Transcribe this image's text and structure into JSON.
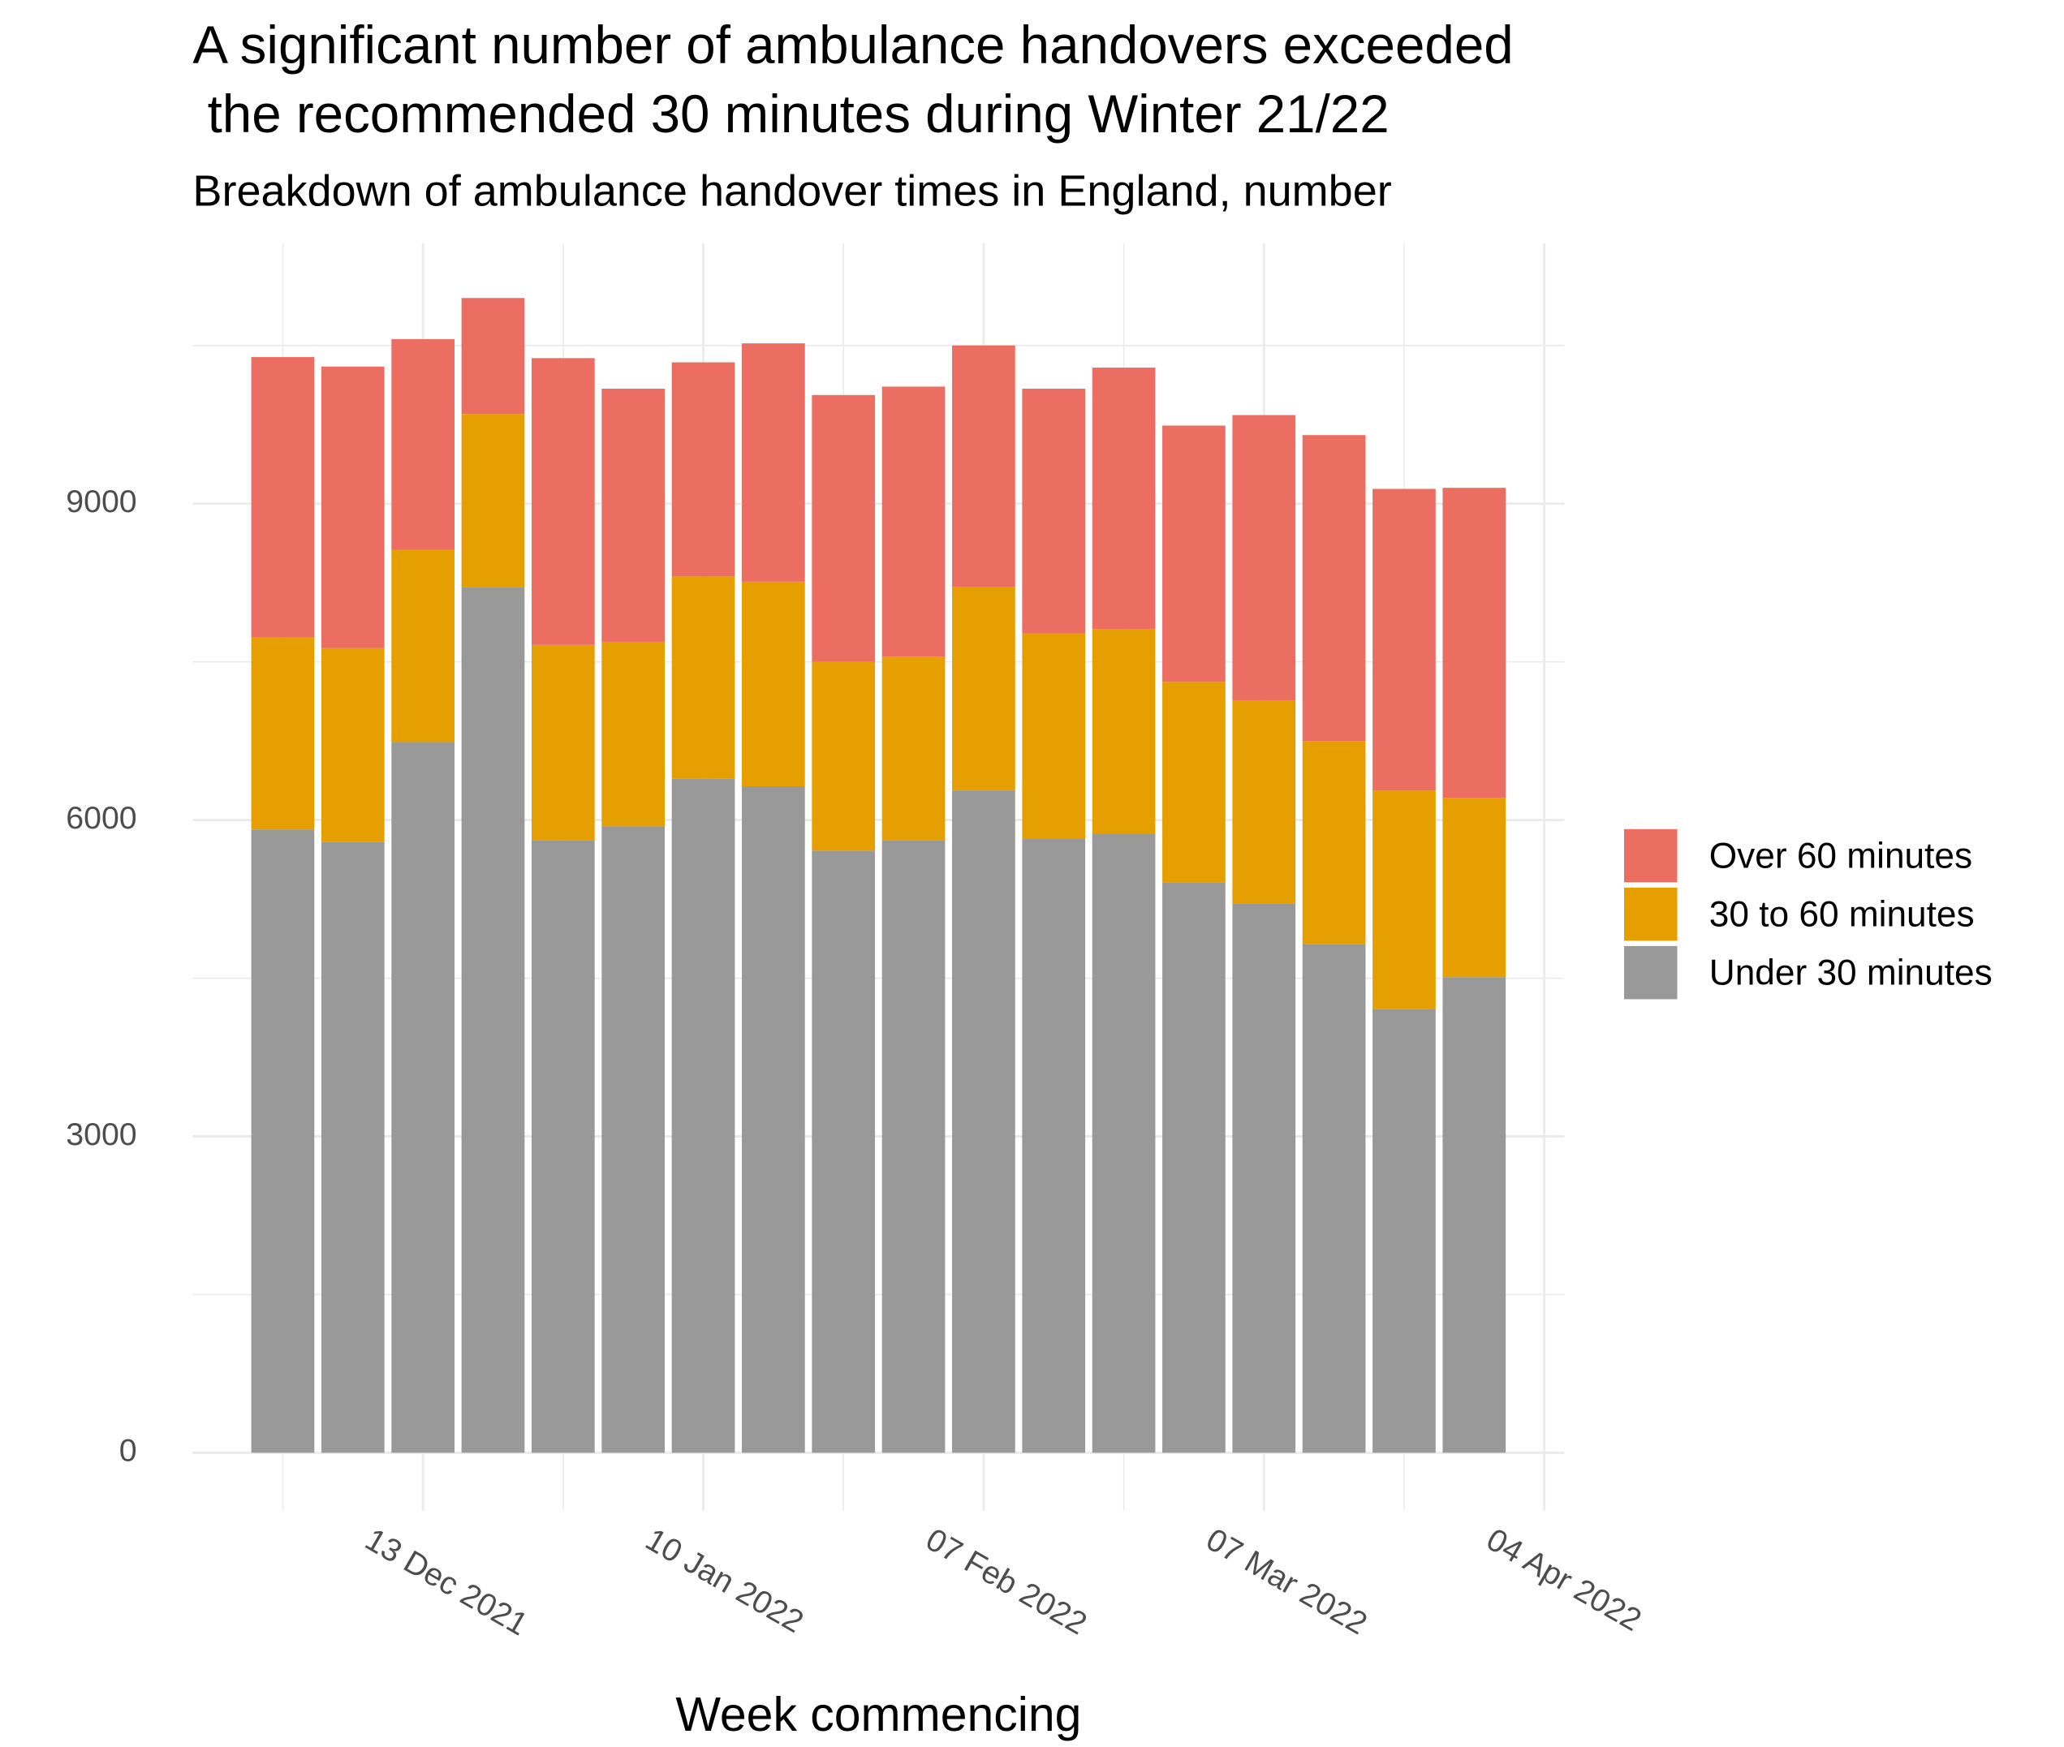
{
  "chart_data": {
    "type": "stacked-bar",
    "title": [
      "A significant number of ambulance handovers exceeded",
      " the recommended 30 minutes during Winter 21/22"
    ],
    "subtitle": "Breakdown of ambulance handover times in England, number",
    "x_label": "Week commencing",
    "x": [
      "2021-11-29",
      "2021-12-06",
      "2021-12-13",
      "2021-12-20",
      "2021-12-27",
      "2022-01-03",
      "2022-01-10",
      "2022-01-17",
      "2022-01-24",
      "2022-01-31",
      "2022-02-07",
      "2022-02-14",
      "2022-02-21",
      "2022-02-28",
      "2022-03-07",
      "2022-03-14",
      "2022-03-21",
      "2022-03-28"
    ],
    "series": [
      {
        "name": "Under 30 minutes",
        "color": "#999999",
        "values": [
          5910,
          5790,
          6740,
          8210,
          5810,
          5940,
          6390,
          6320,
          5710,
          5810,
          6280,
          5820,
          5870,
          5410,
          5210,
          4820,
          4210,
          4510
        ]
      },
      {
        "name": "30 to 60 minutes",
        "color": "#E69F00",
        "values": [
          1820,
          1840,
          1820,
          1640,
          1850,
          1750,
          1920,
          1940,
          1790,
          1740,
          1930,
          1950,
          1940,
          1900,
          1920,
          1930,
          2070,
          1700
        ]
      },
      {
        "name": "Over 60 minutes",
        "color": "#EC6E62",
        "values": [
          2660,
          2670,
          2000,
          1100,
          2720,
          2400,
          2030,
          2260,
          2530,
          2560,
          2290,
          2320,
          2480,
          2430,
          2710,
          2900,
          2860,
          2940
        ]
      }
    ],
    "xlim": [
      "2021-11-20",
      "2022-04-06"
    ],
    "xticks": [
      {
        "value": "2021-12-13",
        "label": "13 Dec 2021"
      },
      {
        "value": "2022-01-10",
        "label": "10 Jan 2022"
      },
      {
        "value": "2022-02-07",
        "label": "07 Feb 2022"
      },
      {
        "value": "2022-03-07",
        "label": "07 Mar 2022"
      },
      {
        "value": "2022-04-04",
        "label": "04 Apr 2022"
      }
    ],
    "ylim": [
      -550,
      11470
    ],
    "yticks": [
      0,
      3000,
      6000,
      9000
    ],
    "grid": true,
    "legend": "right"
  }
}
